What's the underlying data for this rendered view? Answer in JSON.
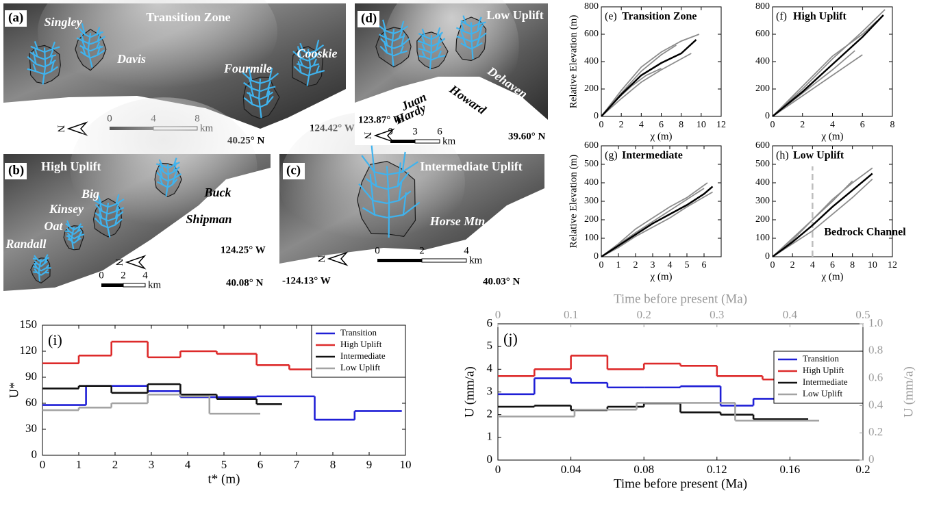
{
  "maps": [
    {
      "label": "(a)",
      "title": "Transition Zone",
      "names": [
        "Singley",
        "Davis",
        "Fourmile",
        "Cooskie"
      ],
      "scale": [
        "0",
        "4",
        "8"
      ],
      "unit": "km",
      "lon": "124.42° W",
      "lat": "40.25° N",
      "north": "N"
    },
    {
      "label": "(b)",
      "title": "High Uplift",
      "names": [
        "Big",
        "Kinsey",
        "Oat",
        "Randall",
        "Buck",
        "Shipman"
      ],
      "scale": [
        "0",
        "2",
        "4"
      ],
      "unit": "km",
      "lon": "124.25° W",
      "lat": "40.08° N",
      "north": "N"
    },
    {
      "label": "(c)",
      "title": "Intermediate Uplift",
      "names": [
        "Horse Mtn"
      ],
      "scale": [
        "0",
        "2",
        "4"
      ],
      "unit": "km",
      "lon": "-124.13° W",
      "lat": "40.03° N",
      "north": "N"
    },
    {
      "label": "(d)",
      "title": "Low Uplift",
      "names": [
        "Juan",
        "Hardy",
        "Howard",
        "Dehaven"
      ],
      "scale": [
        "0",
        "3",
        "6"
      ],
      "unit": "km",
      "lon": "123.87° W",
      "lat": "39.60° N",
      "north": "N"
    }
  ],
  "chart_data": [
    {
      "type": "line",
      "label": "(e)",
      "title": "Transition Zone",
      "xlabel": "χ (m)",
      "ylabel": "Relative Elevation (m)",
      "xlim": [
        0,
        12
      ],
      "xticks": [
        0,
        2,
        4,
        6,
        8,
        10,
        12
      ],
      "ylim": [
        0,
        800
      ],
      "yticks": [
        0,
        200,
        400,
        600,
        800
      ],
      "series": [
        {
          "color": "#8c8c8c",
          "x": [
            0,
            2,
            4,
            6,
            7.5
          ],
          "values": [
            0,
            170,
            330,
            450,
            520
          ]
        },
        {
          "color": "#8c8c8c",
          "x": [
            0,
            2,
            4,
            6,
            8,
            9
          ],
          "values": [
            0,
            130,
            250,
            340,
            420,
            460
          ]
        },
        {
          "color": "#8c8c8c",
          "x": [
            0,
            2,
            4,
            6,
            8,
            9.8
          ],
          "values": [
            0,
            190,
            360,
            470,
            550,
            600
          ]
        },
        {
          "color": "#8c8c8c",
          "x": [
            0,
            1.5,
            3,
            4.5,
            6
          ],
          "values": [
            0,
            120,
            220,
            300,
            350
          ]
        },
        {
          "color": "#000000",
          "x": [
            0,
            2,
            4,
            6,
            8,
            9.5
          ],
          "values": [
            0,
            160,
            300,
            390,
            460,
            560
          ]
        }
      ]
    },
    {
      "type": "line",
      "label": "(f)",
      "title": "High Uplift",
      "xlabel": "χ (m)",
      "xlim": [
        0,
        8
      ],
      "xticks": [
        0,
        2,
        4,
        6,
        8
      ],
      "ylim": [
        0,
        800
      ],
      "yticks": [
        0,
        200,
        400,
        600,
        800
      ],
      "series": [
        {
          "color": "#8c8c8c",
          "x": [
            0,
            2,
            4,
            6,
            7.5
          ],
          "values": [
            0,
            200,
            420,
            620,
            780
          ]
        },
        {
          "color": "#8c8c8c",
          "x": [
            0,
            2,
            4,
            6
          ],
          "values": [
            0,
            150,
            300,
            450
          ]
        },
        {
          "color": "#8c8c8c",
          "x": [
            0,
            2,
            4,
            6,
            7
          ],
          "values": [
            0,
            220,
            440,
            600,
            700
          ]
        },
        {
          "color": "#8c8c8c",
          "x": [
            0,
            2,
            4,
            5.5
          ],
          "values": [
            0,
            170,
            340,
            480
          ]
        },
        {
          "color": "#000000",
          "x": [
            0,
            2,
            4,
            6,
            7.4
          ],
          "values": [
            0,
            180,
            380,
            580,
            740
          ]
        }
      ]
    },
    {
      "type": "line",
      "label": "(g)",
      "title": "Intermediate",
      "xlabel": "χ (m)",
      "ylabel": "Relative Elevation (m)",
      "xlim": [
        0,
        7
      ],
      "xticks": [
        0,
        1,
        2,
        3,
        4,
        5,
        6
      ],
      "ylim": [
        0,
        600
      ],
      "yticks": [
        0,
        100,
        200,
        300,
        400,
        500,
        600
      ],
      "series": [
        {
          "color": "#8c8c8c",
          "x": [
            0,
            1,
            2,
            3,
            4,
            5,
            6.2
          ],
          "values": [
            0,
            70,
            150,
            210,
            270,
            320,
            400
          ]
        },
        {
          "color": "#8c8c8c",
          "x": [
            0,
            1,
            2,
            3,
            4,
            5,
            6.5
          ],
          "values": [
            0,
            50,
            110,
            160,
            210,
            270,
            350
          ]
        },
        {
          "color": "#8c8c8c",
          "x": [
            0,
            2,
            4,
            6
          ],
          "values": [
            0,
            130,
            250,
            370
          ]
        },
        {
          "color": "#000000",
          "x": [
            0,
            1,
            2,
            3,
            4,
            5,
            6,
            6.5
          ],
          "values": [
            0,
            60,
            120,
            180,
            230,
            280,
            340,
            380
          ]
        }
      ]
    },
    {
      "type": "line",
      "label": "(h)",
      "title": "Low Uplift",
      "xlabel": "χ (m)",
      "annotation": "Bedrock Channel",
      "vline": 4,
      "xlim": [
        0,
        12
      ],
      "xticks": [
        0,
        2,
        4,
        6,
        8,
        10,
        12
      ],
      "ylim": [
        0,
        600
      ],
      "yticks": [
        0,
        100,
        200,
        300,
        400,
        500,
        600
      ],
      "series": [
        {
          "color": "#8c8c8c",
          "x": [
            0,
            2,
            4,
            6,
            8,
            10
          ],
          "values": [
            0,
            90,
            200,
            310,
            400,
            480
          ]
        },
        {
          "color": "#8c8c8c",
          "x": [
            0,
            2,
            4,
            6,
            8,
            10
          ],
          "values": [
            0,
            70,
            140,
            230,
            320,
            420
          ]
        },
        {
          "color": "#8c8c8c",
          "x": [
            0,
            2,
            4,
            6,
            8
          ],
          "values": [
            0,
            100,
            200,
            300,
            410
          ]
        },
        {
          "color": "#000000",
          "x": [
            0,
            2,
            4,
            6,
            8,
            10
          ],
          "values": [
            0,
            80,
            170,
            270,
            360,
            450
          ]
        }
      ]
    },
    {
      "type": "step",
      "label": "(i)",
      "xlabel": "t* (m)",
      "ylabel": "U*",
      "legend": "upper right",
      "xlim": [
        0,
        10
      ],
      "xticks": [
        0,
        1,
        2,
        3,
        4,
        5,
        6,
        7,
        8,
        9,
        10
      ],
      "ylim": [
        0,
        150
      ],
      "yticks": [
        0,
        30,
        60,
        90,
        120,
        150
      ],
      "series": [
        {
          "name": "Transition",
          "color": "#1f1fd6",
          "bins": [
            0,
            1.2,
            2.9,
            3.8,
            5.9,
            7.5,
            8.6,
            9.9
          ],
          "values": [
            58,
            80,
            74,
            67,
            68,
            41,
            51
          ]
        },
        {
          "name": "High Uplift",
          "color": "#dd2a2a",
          "bins": [
            0,
            1,
            1.9,
            2.9,
            3.8,
            4.8,
            5.9,
            6.8,
            7.5
          ],
          "values": [
            106,
            115,
            131,
            113,
            120,
            117,
            104,
            99
          ]
        },
        {
          "name": "Intermediate",
          "color": "#111111",
          "bins": [
            0,
            1,
            1.9,
            2.9,
            3.8,
            4.8,
            5.9,
            6.6
          ],
          "values": [
            77,
            80,
            72,
            82,
            70,
            65,
            59
          ]
        },
        {
          "name": "Low Uplift",
          "color": "#a3a3a3",
          "bins": [
            0,
            1,
            1.9,
            2.9,
            3.8,
            4.6,
            6.0
          ],
          "values": [
            52,
            55,
            60,
            70,
            68,
            48
          ]
        }
      ]
    },
    {
      "type": "step",
      "label": "(j)",
      "xlabel": "Time before present (Ma)",
      "x2label": "Time before present  (Ma)",
      "ylabel": "U (mm/a)",
      "y2label": "U (mm/a)",
      "legend": "upper right",
      "axis2_color": "#9a9a9a",
      "xlim": [
        0,
        0.2
      ],
      "xticks": [
        0,
        0.04,
        0.08,
        0.12,
        0.16,
        0.2
      ],
      "x2lim": [
        0,
        0.5
      ],
      "x2ticks": [
        0,
        0.1,
        0.2,
        0.3,
        0.4,
        0.5
      ],
      "ylim": [
        0,
        6
      ],
      "yticks": [
        0,
        1,
        2,
        3,
        4,
        5,
        6
      ],
      "y2lim": [
        0,
        1
      ],
      "y2ticks": [
        0,
        0.2,
        0.4,
        0.6,
        0.8,
        {
          "value": 1,
          "label": "1.0"
        }
      ],
      "series": [
        {
          "name": "Transition",
          "color": "#1f1fd6",
          "bins": [
            0,
            0.02,
            0.04,
            0.06,
            0.08,
            0.1,
            0.122,
            0.14,
            0.164
          ],
          "values": [
            2.9,
            3.6,
            3.4,
            3.2,
            3.2,
            3.25,
            2.4,
            2.7
          ]
        },
        {
          "name": "High Uplift",
          "color": "#dd2a2a",
          "bins": [
            0,
            0.02,
            0.04,
            0.06,
            0.08,
            0.1,
            0.12,
            0.145,
            0.164
          ],
          "values": [
            3.7,
            4.0,
            4.6,
            4.0,
            4.25,
            4.15,
            3.7,
            3.55
          ]
        },
        {
          "name": "Intermediate",
          "color": "#111111",
          "bins": [
            0,
            0.02,
            0.04,
            0.06,
            0.08,
            0.1,
            0.122,
            0.14,
            0.17
          ],
          "values": [
            2.35,
            2.4,
            2.2,
            2.35,
            2.5,
            2.1,
            2.0,
            1.8
          ]
        },
        {
          "name": "Low Uplift",
          "color": "#a3a3a3",
          "axis": "y2",
          "xaxis": "x2",
          "bins": [
            0,
            0.105,
            0.19,
            0.325,
            0.44
          ],
          "values": [
            0.32,
            0.37,
            0.42,
            0.29
          ]
        }
      ]
    }
  ]
}
